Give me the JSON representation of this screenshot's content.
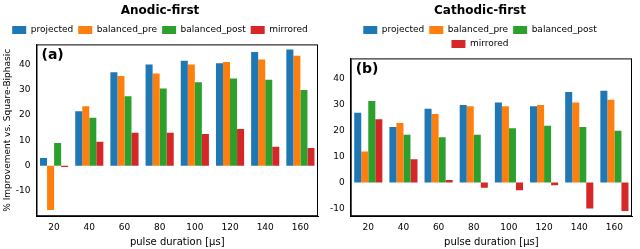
{
  "chart_data": [
    {
      "type": "bar",
      "title": "Anodic-first",
      "annotations": [
        "(a)"
      ],
      "x_label": "pulse duration [μs]",
      "y_label": "% Improvement vs. Square-Biphasic",
      "categories": [
        "20",
        "40",
        "60",
        "80",
        "100",
        "120",
        "140",
        "160"
      ],
      "series": [
        {
          "name": "projected",
          "color": "#1f77b4",
          "values": [
            3,
            21.5,
            37,
            40,
            41.5,
            40.5,
            45,
            46
          ]
        },
        {
          "name": "balanced_pre",
          "color": "#ff7f0e",
          "values": [
            -17.5,
            23.5,
            35.5,
            36.5,
            40,
            41,
            42,
            43.5
          ]
        },
        {
          "name": "balanced_post",
          "color": "#2ca02c",
          "values": [
            9,
            19,
            27.5,
            30.5,
            33,
            34.5,
            34,
            30
          ]
        },
        {
          "name": "mirrored",
          "color": "#d62728",
          "values": [
            -0.5,
            9.5,
            13,
            13,
            12.5,
            14.5,
            7.5,
            7
          ]
        }
      ],
      "ylim": [
        -20,
        48
      ],
      "yticks": [
        -10,
        0,
        10,
        20,
        30,
        40
      ],
      "grid": false,
      "legend": "top"
    },
    {
      "type": "bar",
      "title": "Cathodic-first",
      "annotations": [
        "(b)"
      ],
      "x_label": "pulse duration [μs]",
      "categories": [
        "20",
        "40",
        "60",
        "80",
        "100",
        "120",
        "140",
        "160"
      ],
      "series": [
        {
          "name": "projected",
          "color": "#1f77b4",
          "values": [
            27,
            21.5,
            28.5,
            30,
            31,
            29.5,
            35,
            35.5
          ]
        },
        {
          "name": "balanced_pre",
          "color": "#ff7f0e",
          "values": [
            12,
            23,
            26.5,
            29.5,
            29.5,
            30,
            31,
            32
          ]
        },
        {
          "name": "balanced_post",
          "color": "#2ca02c",
          "values": [
            31.5,
            18.5,
            17.5,
            18.5,
            21,
            22,
            21.5,
            20
          ]
        },
        {
          "name": "mirrored",
          "color": "#d62728",
          "values": [
            24.5,
            9,
            1,
            -2,
            -3,
            -1,
            -10,
            -11
          ]
        }
      ],
      "ylim": [
        -13,
        48
      ],
      "yticks": [
        -10,
        0,
        10,
        20,
        30,
        40
      ],
      "grid": false,
      "legend": "top"
    }
  ]
}
